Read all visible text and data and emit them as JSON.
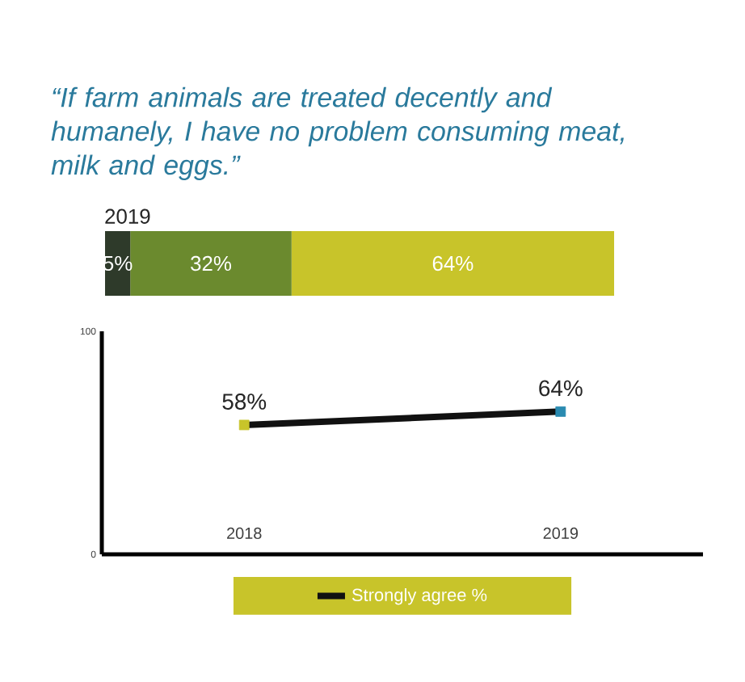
{
  "chart_data": [
    {
      "type": "bar",
      "orientation": "horizontal",
      "stacked": true,
      "title": "“If farm animals are treated decently and humanely, I have no problem consuming meat, milk and eggs.”",
      "categories": [
        "2019"
      ],
      "series": [
        {
          "color": "#2e3a2a",
          "values": [
            5
          ],
          "value_labels": [
            "5%"
          ]
        },
        {
          "color": "#6b8a2e",
          "values": [
            32
          ],
          "value_labels": [
            "32%"
          ]
        },
        {
          "color": "#c8c42a",
          "values": [
            64
          ],
          "value_labels": [
            "64%"
          ]
        }
      ]
    },
    {
      "type": "line",
      "categories": [
        "2018",
        "2019"
      ],
      "ylim": [
        0,
        100
      ],
      "yticks": [
        0,
        100
      ],
      "legend": "bottom",
      "marker": "square",
      "line_style": "solid",
      "series": [
        {
          "name": "Strongly agree %",
          "color": "#111111",
          "colors": [
            "#c8c42a",
            "#2a8ab0"
          ],
          "values": [
            58,
            64
          ],
          "value_labels": [
            "58%",
            "64%"
          ]
        }
      ]
    }
  ]
}
